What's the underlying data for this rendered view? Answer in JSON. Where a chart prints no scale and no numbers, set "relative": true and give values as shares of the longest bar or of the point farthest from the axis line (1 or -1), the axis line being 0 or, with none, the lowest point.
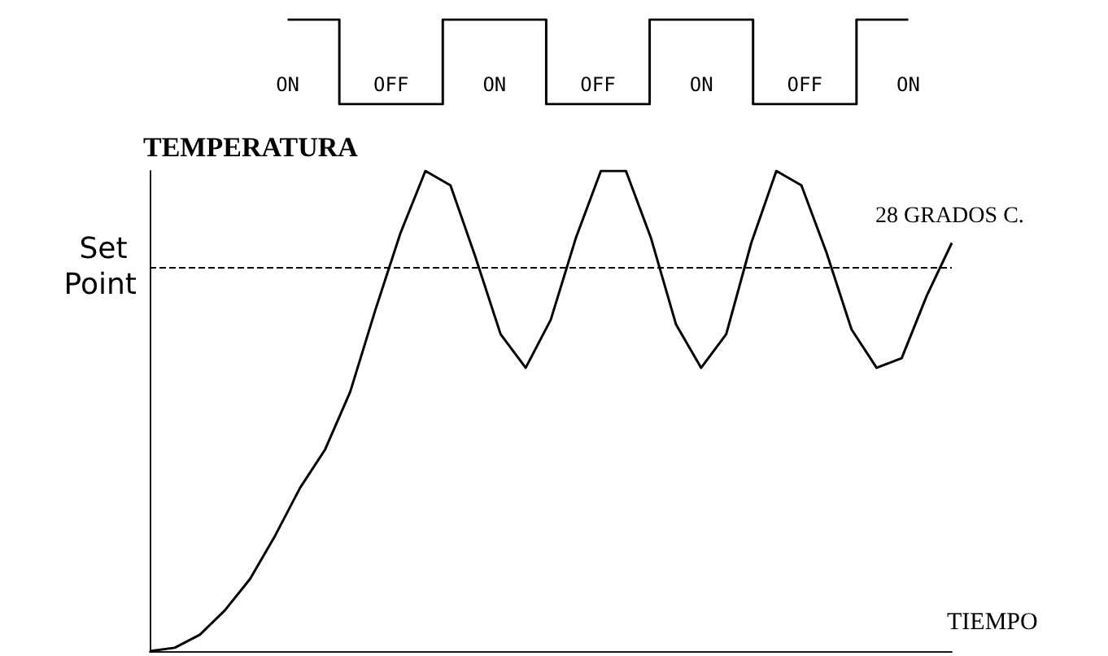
{
  "chart_data": [
    {
      "type": "step",
      "relative": true,
      "categories": [
        "ON",
        "OFF",
        "ON",
        "OFF",
        "ON",
        "OFF",
        "ON"
      ],
      "color": "#000000",
      "values": [
        1,
        0,
        1,
        0,
        1,
        0,
        1
      ],
      "marker": "none",
      "line_style": "solid"
    },
    {
      "type": "line",
      "relative": true,
      "ylabel": "TEMPERATURA",
      "xlabel": "TIEMPO",
      "color": "#000000",
      "marker": "none",
      "line_style": "solid",
      "categories": [
        null,
        null,
        null,
        null,
        null,
        null,
        null,
        null,
        null,
        null,
        null,
        null,
        null,
        null,
        null,
        null,
        null,
        null,
        null,
        null,
        null,
        null,
        null,
        null,
        null,
        null,
        null,
        null,
        null,
        null,
        null,
        null,
        null
      ],
      "values": [
        0,
        0.007,
        0.034,
        0.085,
        0.15,
        0.24,
        0.34,
        0.42,
        0.54,
        0.71,
        0.87,
        1,
        0.97,
        0.82,
        0.66,
        0.59,
        0.69,
        0.86,
        1,
        1,
        0.86,
        0.68,
        0.59,
        0.66,
        0.85,
        1,
        0.97,
        0.83,
        0.67,
        0.59,
        0.61,
        0.74,
        0.85
      ],
      "ref_lines": [
        {
          "axis": "y",
          "value": 0.8,
          "label": "Set Point",
          "line_style": "dashed",
          "color": "#000000"
        }
      ],
      "annotations": [
        "28 GRADOS C."
      ]
    }
  ]
}
